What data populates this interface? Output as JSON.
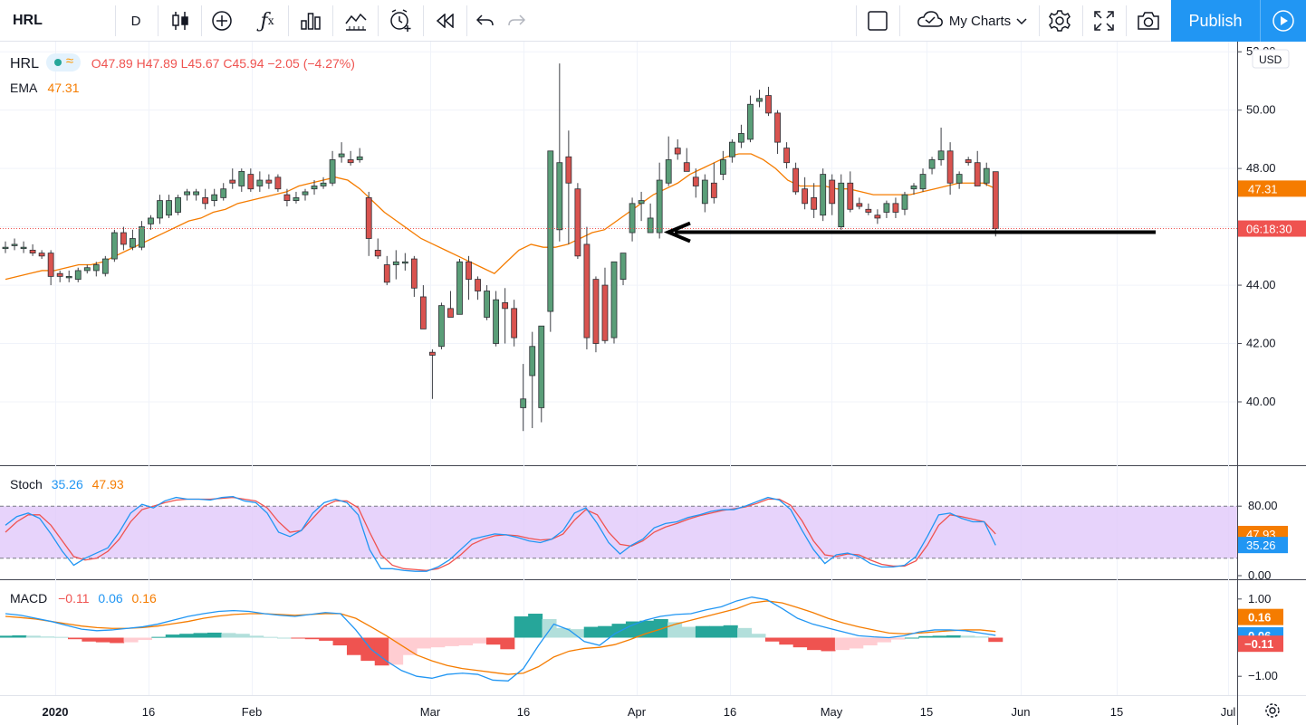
{
  "toolbar": {
    "symbol": "HRL",
    "interval": "D",
    "my_charts": "My Charts",
    "publish": "Publish",
    "icons": [
      "candles-icon",
      "add-indicator-icon",
      "fx-icon",
      "bar-chart-icon",
      "templates-icon",
      "alert-icon",
      "replay-icon",
      "undo-icon",
      "redo-icon",
      "layout-square-icon",
      "cloud-icon",
      "chevron-down-icon",
      "settings-icon",
      "fullscreen-icon",
      "camera-icon",
      "play-icon"
    ]
  },
  "legend": {
    "symbol": "HRL",
    "ohlc": "O47.89 H47.89 L45.67 C45.94 −2.05 (−4.27%)",
    "ema_label": "EMA",
    "ema_value": "47.31",
    "stoch_label": "Stoch",
    "stoch_k": "35.26",
    "stoch_d": "47.93",
    "macd_label": "MACD",
    "macd_hist": "−0.11",
    "macd_line": "0.06",
    "macd_signal": "0.16"
  },
  "colors": {
    "up": "#26a69a",
    "up_body": "#5a9e78",
    "down": "#ef5350",
    "down_body": "#d9534f",
    "ema": "#f57c00",
    "stoch_k": "#2196f3",
    "stoch_d": "#ef5350",
    "stoch_band": "#e1c8fa",
    "accent": "#2196f3"
  },
  "chart_data": {
    "type": "candlestick",
    "symbol": "HRL",
    "interval": "D",
    "currency": "USD",
    "price_axis": {
      "ticks": [
        "52.00",
        "50.00",
        "48.00",
        "46.00",
        "44.00",
        "42.00",
        "40.00"
      ],
      "range": [
        38.2,
        52.1
      ]
    },
    "time_axis": {
      "ticks": [
        "2020",
        "16",
        "Feb",
        "Mar",
        "16",
        "Apr",
        "16",
        "May",
        "15",
        "Jun",
        "15",
        "Jul"
      ]
    },
    "candles": [
      {
        "o": 45.3,
        "h": 45.5,
        "l": 45.1,
        "c": 45.3
      },
      {
        "o": 45.4,
        "h": 45.6,
        "l": 45.2,
        "c": 45.4
      },
      {
        "o": 45.3,
        "h": 45.5,
        "l": 45.1,
        "c": 45.3
      },
      {
        "o": 45.2,
        "h": 45.4,
        "l": 45.0,
        "c": 45.1
      },
      {
        "o": 45.1,
        "h": 45.2,
        "l": 44.9,
        "c": 45.0
      },
      {
        "o": 45.1,
        "h": 45.2,
        "l": 44.0,
        "c": 44.3
      },
      {
        "o": 44.4,
        "h": 44.5,
        "l": 44.1,
        "c": 44.3
      },
      {
        "o": 44.3,
        "h": 44.5,
        "l": 44.1,
        "c": 44.3
      },
      {
        "o": 44.2,
        "h": 44.6,
        "l": 44.1,
        "c": 44.5
      },
      {
        "o": 44.5,
        "h": 44.7,
        "l": 44.4,
        "c": 44.6
      },
      {
        "o": 44.5,
        "h": 44.8,
        "l": 44.3,
        "c": 44.7
      },
      {
        "o": 44.4,
        "h": 45.0,
        "l": 44.3,
        "c": 44.9
      },
      {
        "o": 44.9,
        "h": 45.9,
        "l": 44.8,
        "c": 45.8
      },
      {
        "o": 45.8,
        "h": 46.0,
        "l": 45.2,
        "c": 45.4
      },
      {
        "o": 45.3,
        "h": 45.9,
        "l": 45.2,
        "c": 45.6
      },
      {
        "o": 45.3,
        "h": 46.2,
        "l": 45.2,
        "c": 46.0
      },
      {
        "o": 46.1,
        "h": 46.4,
        "l": 45.9,
        "c": 46.3
      },
      {
        "o": 46.3,
        "h": 47.1,
        "l": 46.1,
        "c": 46.9
      },
      {
        "o": 46.4,
        "h": 47.1,
        "l": 46.3,
        "c": 46.9
      },
      {
        "o": 46.5,
        "h": 47.1,
        "l": 46.4,
        "c": 47.0
      },
      {
        "o": 47.1,
        "h": 47.3,
        "l": 46.9,
        "c": 47.2
      },
      {
        "o": 47.1,
        "h": 47.3,
        "l": 46.9,
        "c": 47.2
      },
      {
        "o": 47.0,
        "h": 47.3,
        "l": 46.6,
        "c": 46.8
      },
      {
        "o": 46.9,
        "h": 47.3,
        "l": 46.7,
        "c": 47.1
      },
      {
        "o": 47.0,
        "h": 47.5,
        "l": 46.9,
        "c": 47.3
      },
      {
        "o": 47.6,
        "h": 48.0,
        "l": 47.3,
        "c": 47.5
      },
      {
        "o": 47.4,
        "h": 48.0,
        "l": 47.2,
        "c": 47.9
      },
      {
        "o": 47.8,
        "h": 48.0,
        "l": 47.2,
        "c": 47.3
      },
      {
        "o": 47.4,
        "h": 47.9,
        "l": 47.2,
        "c": 47.6
      },
      {
        "o": 47.6,
        "h": 47.8,
        "l": 47.3,
        "c": 47.5
      },
      {
        "o": 47.7,
        "h": 47.8,
        "l": 47.2,
        "c": 47.3
      },
      {
        "o": 47.1,
        "h": 47.3,
        "l": 46.7,
        "c": 46.9
      },
      {
        "o": 46.9,
        "h": 47.2,
        "l": 46.8,
        "c": 47.0
      },
      {
        "o": 47.1,
        "h": 47.3,
        "l": 46.9,
        "c": 47.2
      },
      {
        "o": 47.3,
        "h": 47.6,
        "l": 47.1,
        "c": 47.4
      },
      {
        "o": 47.4,
        "h": 47.7,
        "l": 47.3,
        "c": 47.5
      },
      {
        "o": 47.5,
        "h": 48.6,
        "l": 47.4,
        "c": 48.3
      },
      {
        "o": 48.4,
        "h": 48.9,
        "l": 48.2,
        "c": 48.5
      },
      {
        "o": 48.3,
        "h": 48.6,
        "l": 48.1,
        "c": 48.2
      },
      {
        "o": 48.3,
        "h": 48.7,
        "l": 48.2,
        "c": 48.4
      },
      {
        "o": 47.0,
        "h": 47.2,
        "l": 45.0,
        "c": 45.6
      },
      {
        "o": 45.2,
        "h": 45.6,
        "l": 44.9,
        "c": 45.0
      },
      {
        "o": 44.7,
        "h": 45.0,
        "l": 44.0,
        "c": 44.1
      },
      {
        "o": 44.7,
        "h": 45.2,
        "l": 44.2,
        "c": 44.8
      },
      {
        "o": 44.8,
        "h": 45.1,
        "l": 44.5,
        "c": 44.8
      },
      {
        "o": 44.9,
        "h": 45.0,
        "l": 43.6,
        "c": 43.9
      },
      {
        "o": 43.6,
        "h": 44.0,
        "l": 42.5,
        "c": 42.5
      },
      {
        "o": 41.7,
        "h": 41.8,
        "l": 40.1,
        "c": 41.6
      },
      {
        "o": 41.9,
        "h": 43.4,
        "l": 41.8,
        "c": 43.3
      },
      {
        "o": 43.2,
        "h": 43.8,
        "l": 42.9,
        "c": 42.9
      },
      {
        "o": 43.0,
        "h": 44.9,
        "l": 43.0,
        "c": 44.8
      },
      {
        "o": 44.8,
        "h": 45.0,
        "l": 43.5,
        "c": 44.2
      },
      {
        "o": 44.2,
        "h": 44.3,
        "l": 43.5,
        "c": 43.8
      },
      {
        "o": 42.9,
        "h": 44.0,
        "l": 42.8,
        "c": 43.8
      },
      {
        "o": 42.0,
        "h": 43.8,
        "l": 41.9,
        "c": 43.5
      },
      {
        "o": 43.4,
        "h": 43.9,
        "l": 42.0,
        "c": 43.2
      },
      {
        "o": 43.2,
        "h": 43.5,
        "l": 41.9,
        "c": 42.2
      },
      {
        "o": 39.8,
        "h": 41.3,
        "l": 39.0,
        "c": 40.1
      },
      {
        "o": 40.9,
        "h": 42.4,
        "l": 39.1,
        "c": 41.9
      },
      {
        "o": 39.8,
        "h": 42.6,
        "l": 39.3,
        "c": 42.6
      },
      {
        "o": 43.1,
        "h": 48.6,
        "l": 42.4,
        "c": 48.6
      },
      {
        "o": 45.9,
        "h": 51.6,
        "l": 45.5,
        "c": 48.2
      },
      {
        "o": 48.4,
        "h": 49.3,
        "l": 45.4,
        "c": 47.5
      },
      {
        "o": 47.3,
        "h": 47.5,
        "l": 44.9,
        "c": 45.0
      },
      {
        "o": 45.4,
        "h": 46.0,
        "l": 41.8,
        "c": 42.2
      },
      {
        "o": 44.2,
        "h": 44.3,
        "l": 41.7,
        "c": 42.0
      },
      {
        "o": 44.0,
        "h": 44.6,
        "l": 42.0,
        "c": 42.1
      },
      {
        "o": 42.2,
        "h": 44.8,
        "l": 42.0,
        "c": 44.8
      },
      {
        "o": 44.2,
        "h": 45.1,
        "l": 44.0,
        "c": 45.1
      },
      {
        "o": 45.8,
        "h": 47.0,
        "l": 45.5,
        "c": 46.8
      },
      {
        "o": 46.8,
        "h": 47.2,
        "l": 46.2,
        "c": 46.9
      },
      {
        "o": 45.8,
        "h": 46.8,
        "l": 45.8,
        "c": 46.3
      },
      {
        "o": 45.8,
        "h": 48.2,
        "l": 45.6,
        "c": 47.6
      },
      {
        "o": 47.5,
        "h": 49.1,
        "l": 47.4,
        "c": 48.3
      },
      {
        "o": 48.7,
        "h": 49.0,
        "l": 48.3,
        "c": 48.5
      },
      {
        "o": 48.2,
        "h": 48.7,
        "l": 47.9,
        "c": 47.9
      },
      {
        "o": 47.7,
        "h": 48.0,
        "l": 47.0,
        "c": 47.4
      },
      {
        "o": 46.8,
        "h": 47.8,
        "l": 46.5,
        "c": 47.6
      },
      {
        "o": 47.5,
        "h": 48.2,
        "l": 46.8,
        "c": 47.0
      },
      {
        "o": 47.8,
        "h": 48.6,
        "l": 47.6,
        "c": 48.3
      },
      {
        "o": 48.4,
        "h": 49.0,
        "l": 48.2,
        "c": 48.9
      },
      {
        "o": 48.9,
        "h": 49.5,
        "l": 48.7,
        "c": 49.2
      },
      {
        "o": 49.0,
        "h": 50.5,
        "l": 48.9,
        "c": 50.2
      },
      {
        "o": 50.3,
        "h": 50.7,
        "l": 50.1,
        "c": 50.4
      },
      {
        "o": 50.5,
        "h": 50.8,
        "l": 49.8,
        "c": 49.9
      },
      {
        "o": 49.9,
        "h": 50.0,
        "l": 48.5,
        "c": 48.9
      },
      {
        "o": 48.7,
        "h": 48.9,
        "l": 48.0,
        "c": 48.2
      },
      {
        "o": 48.0,
        "h": 48.2,
        "l": 47.1,
        "c": 47.2
      },
      {
        "o": 47.3,
        "h": 47.7,
        "l": 46.6,
        "c": 46.8
      },
      {
        "o": 47.0,
        "h": 47.5,
        "l": 46.3,
        "c": 46.6
      },
      {
        "o": 46.4,
        "h": 48.0,
        "l": 46.2,
        "c": 47.8
      },
      {
        "o": 47.6,
        "h": 47.8,
        "l": 46.4,
        "c": 46.8
      },
      {
        "o": 46.0,
        "h": 47.8,
        "l": 45.9,
        "c": 47.5
      },
      {
        "o": 47.5,
        "h": 47.9,
        "l": 46.5,
        "c": 46.6
      },
      {
        "o": 46.8,
        "h": 47.0,
        "l": 46.6,
        "c": 46.7
      },
      {
        "o": 46.6,
        "h": 46.8,
        "l": 46.4,
        "c": 46.5
      },
      {
        "o": 46.4,
        "h": 46.6,
        "l": 46.1,
        "c": 46.3
      },
      {
        "o": 46.5,
        "h": 46.9,
        "l": 46.3,
        "c": 46.8
      },
      {
        "o": 46.8,
        "h": 47.0,
        "l": 46.3,
        "c": 46.5
      },
      {
        "o": 46.6,
        "h": 47.2,
        "l": 46.4,
        "c": 47.1
      },
      {
        "o": 47.3,
        "h": 47.5,
        "l": 47.1,
        "c": 47.4
      },
      {
        "o": 47.3,
        "h": 48.0,
        "l": 47.2,
        "c": 47.8
      },
      {
        "o": 48.0,
        "h": 48.4,
        "l": 47.8,
        "c": 48.3
      },
      {
        "o": 48.3,
        "h": 49.4,
        "l": 48.1,
        "c": 48.6
      },
      {
        "o": 48.6,
        "h": 48.9,
        "l": 47.1,
        "c": 47.5
      },
      {
        "o": 47.5,
        "h": 47.9,
        "l": 47.3,
        "c": 47.8
      },
      {
        "o": 48.3,
        "h": 48.4,
        "l": 48.1,
        "c": 48.2
      },
      {
        "o": 48.2,
        "h": 48.6,
        "l": 47.4,
        "c": 47.4
      },
      {
        "o": 47.5,
        "h": 48.2,
        "l": 47.4,
        "c": 48.0
      },
      {
        "o": 47.89,
        "h": 47.89,
        "l": 45.67,
        "c": 45.94
      }
    ],
    "ema": [
      44.2,
      44.3,
      44.4,
      44.5,
      44.5,
      44.6,
      44.7,
      44.7,
      44.8,
      45.0,
      45.2,
      45.4,
      45.6,
      45.8,
      46.0,
      46.2,
      46.3,
      46.5,
      46.6,
      46.8,
      46.9,
      47.0,
      47.1,
      47.2,
      47.4,
      47.5,
      47.6,
      47.7,
      47.6,
      47.3,
      46.9,
      46.5,
      46.2,
      45.9,
      45.6,
      45.4,
      45.2,
      45.0,
      44.8,
      44.6,
      44.4,
      44.8,
      45.2,
      45.4,
      45.3,
      45.3,
      45.4,
      45.6,
      45.8,
      45.9,
      46.2,
      46.5,
      46.8,
      47.1,
      47.3,
      47.5,
      47.8,
      48.0,
      48.2,
      48.4,
      48.5,
      48.5,
      48.3,
      48.0,
      47.6,
      47.4,
      47.4,
      47.4,
      47.3,
      47.3,
      47.2,
      47.1,
      47.1,
      47.1,
      47.1,
      47.2,
      47.3,
      47.4,
      47.5,
      47.5,
      47.5,
      47.31
    ],
    "ema_x0": 0,
    "indicators": {
      "stoch": {
        "levels": [
          80,
          20
        ],
        "ticks": [
          "80.00",
          "0.00"
        ],
        "k_last": 35.26,
        "d_last": 47.93,
        "k": [
          58,
          68,
          72,
          66,
          48,
          28,
          12,
          20,
          26,
          32,
          50,
          72,
          82,
          78,
          86,
          90,
          88,
          88,
          87,
          90,
          91,
          86,
          84,
          72,
          50,
          45,
          52,
          72,
          84,
          88,
          84,
          70,
          30,
          8,
          8,
          6,
          5,
          5,
          10,
          18,
          30,
          42,
          45,
          48,
          47,
          44,
          40,
          38,
          42,
          52,
          72,
          78,
          60,
          38,
          25,
          35,
          42,
          55,
          60,
          62,
          67,
          70,
          74,
          76,
          76,
          80,
          85,
          90,
          87,
          76,
          52,
          30,
          14,
          24,
          26,
          22,
          14,
          10,
          10,
          12,
          22,
          45,
          70,
          72,
          66,
          62,
          62,
          35
        ],
        "d": [
          50,
          62,
          70,
          70,
          58,
          40,
          22,
          18,
          20,
          28,
          42,
          62,
          76,
          80,
          84,
          87,
          88,
          88,
          88,
          89,
          90,
          88,
          86,
          78,
          62,
          50,
          52,
          66,
          80,
          86,
          86,
          78,
          50,
          24,
          12,
          8,
          7,
          6,
          8,
          14,
          24,
          36,
          42,
          46,
          47,
          46,
          43,
          41,
          42,
          48,
          64,
          76,
          70,
          50,
          36,
          34,
          40,
          50,
          56,
          60,
          65,
          69,
          72,
          75,
          77,
          79,
          83,
          88,
          88,
          81,
          63,
          40,
          24,
          22,
          25,
          24,
          18,
          13,
          11,
          11,
          17,
          35,
          58,
          70,
          68,
          65,
          62,
          48
        ]
      },
      "macd": {
        "ticks": [
          "1.00",
          "-1.00"
        ],
        "hist_last": -0.11,
        "macd_last": 0.06,
        "signal_last": 0.16,
        "macd": [
          0.62,
          0.58,
          0.5,
          0.42,
          0.32,
          0.22,
          0.18,
          0.2,
          0.24,
          0.28,
          0.35,
          0.45,
          0.55,
          0.62,
          0.68,
          0.7,
          0.68,
          0.62,
          0.58,
          0.55,
          0.6,
          0.65,
          0.62,
          0.2,
          -0.3,
          -0.6,
          -0.85,
          -1.0,
          -1.05,
          -0.95,
          -0.92,
          -0.95,
          -1.1,
          -1.12,
          -0.8,
          -0.2,
          0.35,
          0.2,
          -0.1,
          -0.2,
          0.1,
          0.3,
          0.45,
          0.55,
          0.6,
          0.62,
          0.72,
          0.8,
          0.95,
          1.05,
          0.98,
          0.75,
          0.5,
          0.35,
          0.25,
          0.15,
          0.05,
          0.02,
          0.0,
          0.05,
          0.15,
          0.2,
          0.2,
          0.18,
          0.12,
          0.06
        ],
        "signal": [
          0.55,
          0.52,
          0.48,
          0.42,
          0.36,
          0.3,
          0.26,
          0.24,
          0.24,
          0.26,
          0.3,
          0.36,
          0.42,
          0.5,
          0.56,
          0.6,
          0.62,
          0.62,
          0.6,
          0.58,
          0.6,
          0.62,
          0.62,
          0.5,
          0.28,
          0.05,
          -0.2,
          -0.45,
          -0.6,
          -0.72,
          -0.8,
          -0.85,
          -0.9,
          -0.95,
          -0.92,
          -0.75,
          -0.5,
          -0.35,
          -0.28,
          -0.25,
          -0.18,
          -0.05,
          0.1,
          0.22,
          0.35,
          0.45,
          0.55,
          0.65,
          0.75,
          0.9,
          0.95,
          0.9,
          0.78,
          0.65,
          0.5,
          0.38,
          0.28,
          0.2,
          0.12,
          0.1,
          0.12,
          0.15,
          0.18,
          0.2,
          0.2,
          0.16
        ],
        "hist": [
          0.05,
          0.06,
          0.05,
          0.03,
          0.02,
          -0.04,
          -0.1,
          -0.12,
          -0.14,
          -0.12,
          -0.06,
          0.02,
          0.08,
          0.1,
          0.12,
          0.13,
          0.12,
          0.1,
          0.05,
          0.02,
          0.0,
          -0.02,
          -0.04,
          -0.08,
          -0.2,
          -0.45,
          -0.6,
          -0.72,
          -0.7,
          -0.45,
          -0.28,
          -0.25,
          -0.22,
          -0.2,
          -0.15,
          -0.18,
          -0.3,
          0.55,
          0.62,
          0.48,
          0.25,
          0.22,
          0.28,
          0.3,
          0.36,
          0.42,
          0.44,
          0.48,
          0.4,
          0.28,
          0.3,
          0.3,
          0.32,
          0.25,
          0.1,
          -0.1,
          -0.18,
          -0.25,
          -0.32,
          -0.35,
          -0.32,
          -0.28,
          -0.2,
          -0.12,
          -0.05,
          0.0,
          0.04,
          0.05,
          0.06,
          0.05,
          0.03,
          -0.11
        ]
      }
    },
    "price_labels": {
      "ema": "47.31",
      "countdown": "06:18:30",
      "currency": "USD"
    },
    "stoch_labels": [
      "47.93",
      "35.26"
    ],
    "macd_labels": [
      "0.16",
      "0.06",
      "−0.11"
    ]
  }
}
